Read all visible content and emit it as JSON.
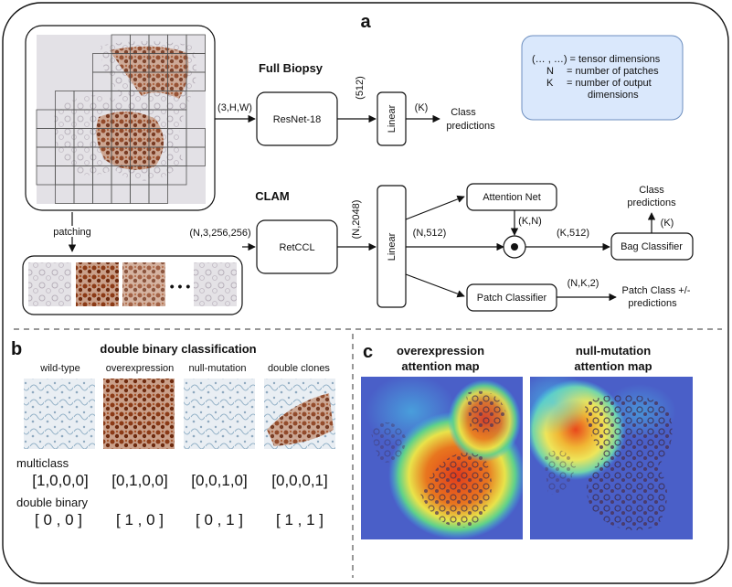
{
  "panel_a": {
    "label": "a",
    "full_biopsy": {
      "title": "Full Biopsy",
      "input_dim": "(3,H,W)",
      "resnet": "ResNet-18",
      "feat_dim": "(512)",
      "linear": "Linear",
      "out_dim": "(K)",
      "pred_line1": "Class",
      "pred_line2": "predictions"
    },
    "clam": {
      "title": "CLAM",
      "patching": "patching",
      "patch_dim": "(N,3,256,256)",
      "retccl": "RetCCL",
      "feat_dim": "(N,2048)",
      "linear": "Linear",
      "lin_out": "(N,512)",
      "attention_net": "Attention Net",
      "att_dim": "(K,N)",
      "pooled_dim": "(K,512)",
      "bag_classifier": "Bag Classifier",
      "bag_out": "(K)",
      "bag_pred_line1": "Class",
      "bag_pred_line2": "predictions",
      "patch_classifier": "Patch Classifier",
      "patch_out": "(N,K,2)",
      "patch_pred_line1": "Patch Class +/-",
      "patch_pred_line2": "predictions",
      "ellipsis": "• • •"
    },
    "legend": {
      "line1": "(… , …) = tensor dimensions",
      "line2_key": "N",
      "line2_val": "= number of patches",
      "line3_key": "K",
      "line3_val": "= number of output",
      "line4": "dimensions"
    }
  },
  "panel_b": {
    "label": "b",
    "title": "double binary classification",
    "classes": [
      "wild-type",
      "overexpression",
      "null-mutation",
      "double clones"
    ],
    "multiclass_label": "multiclass",
    "multiclass": [
      "[1,0,0,0]",
      "[0,1,0,0]",
      "[0,0,1,0]",
      "[0,0,0,1]"
    ],
    "double_binary_label": "double binary",
    "double_binary": [
      "[ 0 , 0 ]",
      "[ 1 , 0 ]",
      "[ 0 , 1 ]",
      "[ 1 , 1 ]"
    ]
  },
  "panel_c": {
    "label": "c",
    "map1_line1": "overexpression",
    "map1_line2": "attention map",
    "map2_line1": "null-mutation",
    "map2_line2": "attention map"
  },
  "colors": {
    "legend_fill": "#dae8fc",
    "legend_stroke": "#6c8ebf",
    "stain_brown": "#8b3a16",
    "heat_blue": "#4a5fc8"
  }
}
